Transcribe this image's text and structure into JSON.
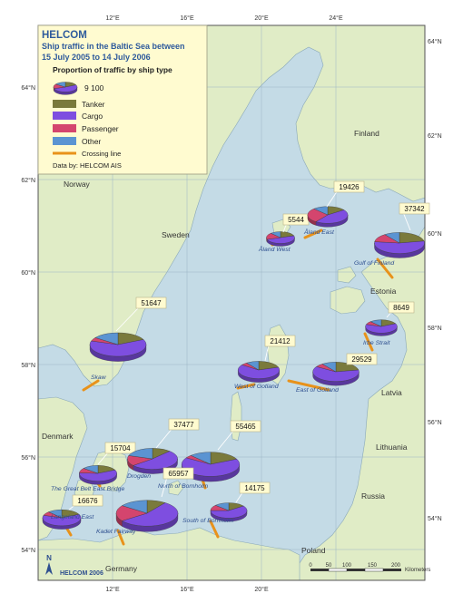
{
  "title": "HELCOM",
  "subtitle_line1": "Ship traffic in the Baltic Sea between",
  "subtitle_line2": "15 July 2005 to 14 July 2006",
  "legend": {
    "heading": "Proportion of traffic by ship type",
    "scale_value": "9 100",
    "items": [
      {
        "label": "Tanker",
        "color": "#7a7a3c"
      },
      {
        "label": "Cargo",
        "color": "#7e4ee0"
      },
      {
        "label": "Passenger",
        "color": "#d4456e"
      },
      {
        "label": "Other",
        "color": "#5b94d2"
      }
    ],
    "crossing_label": "Crossing line",
    "crossing_color": "#e8921a",
    "source": "Data by: HELCOM AIS"
  },
  "colors": {
    "sea": "#c4dbe6",
    "land": "#e0ecc6",
    "coast": "#8aa8b8"
  },
  "countries": [
    "Norway",
    "Sweden",
    "Finland",
    "Estonia",
    "Latvia",
    "Lithuania",
    "Russia",
    "Denmark",
    "Germany",
    "Poland"
  ],
  "lon_labels_top": [
    "12°E",
    "16°E",
    "20°E",
    "24°E"
  ],
  "lon_labels_bottom": [
    "12°E",
    "16°E",
    "20°E"
  ],
  "lat_labels_left": [
    "64°N",
    "62°N",
    "60°N",
    "58°N",
    "56°N",
    "54°N"
  ],
  "lat_labels_right": [
    "64°N",
    "62°N",
    "60°N",
    "58°N",
    "56°N",
    "54°N"
  ],
  "crossings": [
    {
      "name": "Skaw",
      "value": "51647",
      "shares": [
        0.18,
        0.62,
        0.05,
        0.15
      ]
    },
    {
      "name": "Åland West",
      "value": "5544",
      "shares": [
        0.2,
        0.5,
        0.18,
        0.12
      ]
    },
    {
      "name": "Åland East",
      "value": "19426",
      "shares": [
        0.15,
        0.45,
        0.28,
        0.12
      ]
    },
    {
      "name": "Gulf of Finland",
      "value": "37342",
      "shares": [
        0.22,
        0.55,
        0.13,
        0.1
      ]
    },
    {
      "name": "Irbe Strait",
      "value": "8649",
      "shares": [
        0.18,
        0.62,
        0.08,
        0.12
      ]
    },
    {
      "name": "West of Gotland",
      "value": "21412",
      "shares": [
        0.2,
        0.65,
        0.05,
        0.1
      ]
    },
    {
      "name": "East of Gotland",
      "value": "29529",
      "shares": [
        0.22,
        0.62,
        0.06,
        0.1
      ]
    },
    {
      "name": "The Great Belt East Bridge",
      "value": "15704",
      "shares": [
        0.18,
        0.58,
        0.1,
        0.14
      ]
    },
    {
      "name": "Drogden",
      "value": "37477",
      "shares": [
        0.12,
        0.52,
        0.16,
        0.2
      ]
    },
    {
      "name": "North of Bornholm",
      "value": "55465",
      "shares": [
        0.18,
        0.66,
        0.04,
        0.12
      ]
    },
    {
      "name": "Kadet Fairway",
      "value": "65957",
      "shares": [
        0.1,
        0.55,
        0.2,
        0.15
      ]
    },
    {
      "name": "South of Bornholm",
      "value": "14175",
      "shares": [
        0.15,
        0.6,
        0.12,
        0.13
      ]
    },
    {
      "name": "Langeland East",
      "value": "16676",
      "shares": [
        0.18,
        0.62,
        0.08,
        0.12
      ]
    }
  ],
  "scalebar": {
    "ticks": [
      "0",
      "50",
      "100",
      "150",
      "200"
    ],
    "unit": "Kilometers"
  },
  "north": "N",
  "footer": "HELCOM 2006"
}
